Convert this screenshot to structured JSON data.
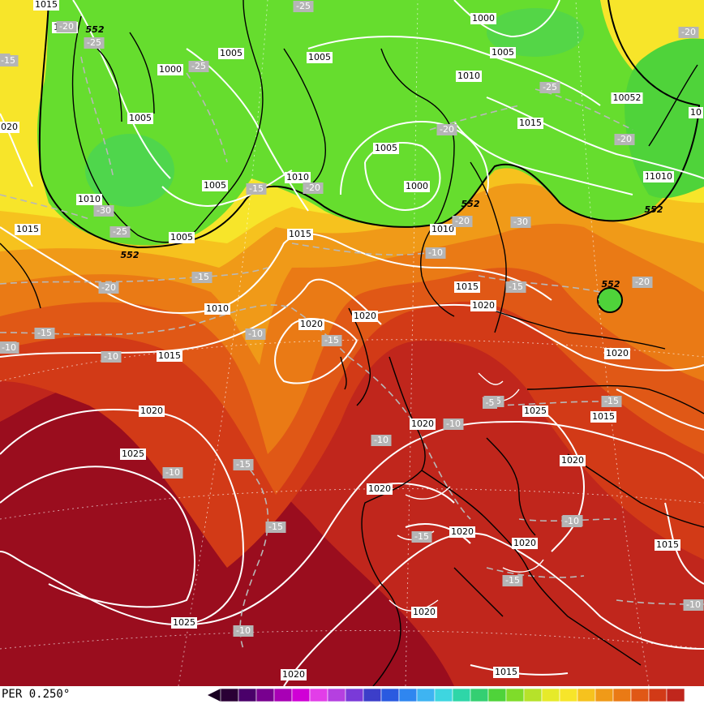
{
  "footer": {
    "model_label": "PER 0.250°"
  },
  "colors": {
    "background_field": [
      "#9a0d1e",
      "#c0261c",
      "#d23a17",
      "#e05816",
      "#ea7a15",
      "#f09a18",
      "#f6c21e",
      "#f7e52a",
      "#66dd2e",
      "#4fd33a",
      "#3dcf66"
    ],
    "colorbar": [
      "#2a0035",
      "#4a006a",
      "#78008f",
      "#a800b5",
      "#d000d6",
      "#e23ee8",
      "#b540e0",
      "#7a3ad8",
      "#3c3ec9",
      "#2a5ae0",
      "#2f86f0",
      "#3eb4f2",
      "#3ed6e0",
      "#2ed6a8",
      "#34cf72",
      "#4fd33a",
      "#7fdc2a",
      "#b6e22a",
      "#e6ea2a",
      "#f7e52a",
      "#f6c21e",
      "#f09a18",
      "#ea7a15",
      "#e05816",
      "#d23a17",
      "#c0261c"
    ],
    "isobar": "#ffffff",
    "isotherm": "#b8b8b8",
    "line_552": "#000000"
  },
  "map": {
    "pressure_labels": [
      "1015",
      "1005",
      "1005",
      "1005",
      "1000",
      "1005",
      "1005",
      "1010",
      "1015",
      "1005",
      "1010",
      "1010",
      "1015",
      "1010",
      "1020",
      "1020",
      "1015",
      "1010",
      "1000",
      "1005",
      "1000",
      "1010",
      "1015",
      "1005",
      "10052",
      "10",
      "1010",
      "1015",
      "1020",
      "1020",
      "1025",
      "1015",
      "1020",
      "1020",
      "1020",
      "1025",
      "1020",
      "1020",
      "1020",
      "1020",
      "1020",
      "1015",
      "1025",
      "1015",
      "1020"
    ],
    "temperature_labels": [
      "-20",
      "-25",
      "-25",
      "-25",
      "-30",
      "-25",
      "-15",
      "-20",
      "-15",
      "-20",
      "-15",
      "-10",
      "-15",
      "-10",
      "-15",
      "-10",
      "-15",
      "-20",
      "-20",
      "-25",
      "-20",
      "-15",
      "-30",
      "-20",
      "-15",
      "-15",
      "-10",
      "-10",
      "-15",
      "-10",
      "-15",
      "-10",
      "-15",
      "-10",
      "-10",
      "-10",
      "-10",
      "-5",
      "-10",
      "-15",
      "-20"
    ],
    "height_labels": [
      "552",
      "552",
      "552",
      "552",
      "552"
    ]
  }
}
